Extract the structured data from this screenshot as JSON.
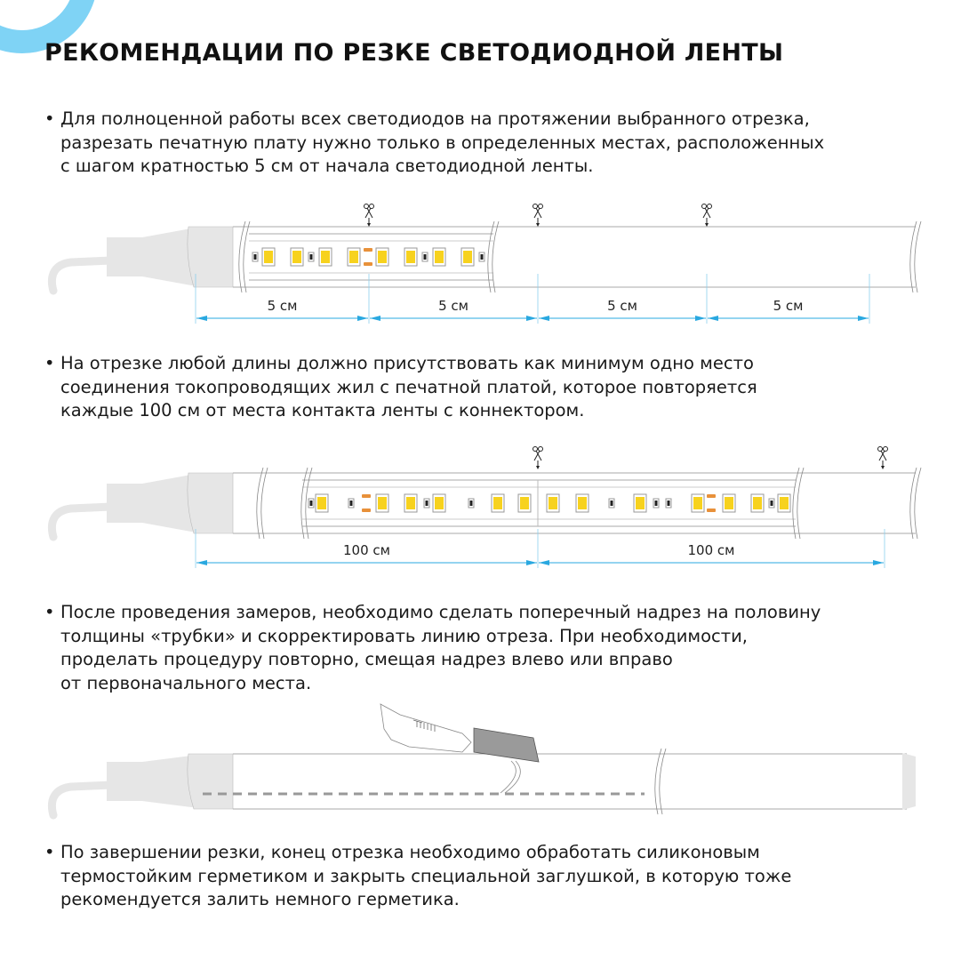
{
  "title": "РЕКОМЕНДАЦИИ ПО РЕЗКЕ СВЕТОДИОДНОЙ ЛЕНТЫ",
  "bullet_char": "•",
  "paragraphs": [
    {
      "lines": [
        "Для полноценной работы всех светодиодов на протяжении выбранного отрезка,",
        "разрезать печатную плату нужно только в определенных местах, расположенных",
        "с шагом кратностью 5 см от начала светодиодной ленты."
      ]
    },
    {
      "lines": [
        "На отрезке любой длины должно присутствовать как минимум одно место",
        "соединения токопроводящих жил с печатной платой, которое повторяется",
        "каждые 100 см от места контакта ленты с коннектором."
      ]
    },
    {
      "lines": [
        "После проведения замеров, необходимо сделать поперечный надрез на половину",
        "толщины «трубки» и скорректировать линию отреза. При необходимости,",
        "проделать процедуру повторно, смещая надрез влево или вправо",
        "от первоначального места."
      ]
    },
    {
      "lines": [
        "По завершении резки, конец отрезка необходимо обработать силиконовым",
        "термостойким герметиком и закрыть специальной заглушкой, в которую тоже",
        "рекомендуется залить немного герметика."
      ]
    }
  ],
  "diagram1": {
    "dimensions": [
      "5 см",
      "5 см",
      "5 см",
      "5 см"
    ]
  },
  "diagram2": {
    "dimensions": [
      "100 см",
      "100 см"
    ]
  },
  "colors": {
    "accent": "#7fd3f5",
    "dimension": "#29a8e0",
    "led": "#f7d21e",
    "contact": "#e8913a",
    "connector": "#e6e6e6",
    "blade": "#9a9a9a"
  }
}
